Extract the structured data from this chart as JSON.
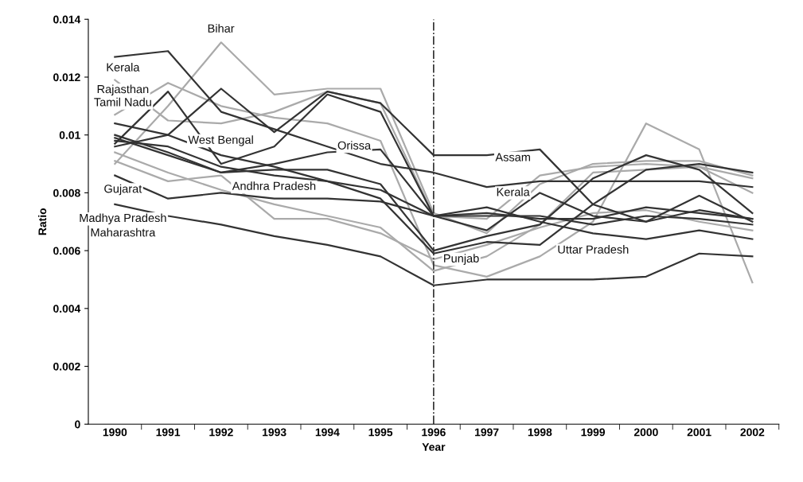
{
  "chart_data": {
    "type": "line",
    "xlabel": "Year",
    "ylabel": "Ratio",
    "categories": [
      "1990",
      "1991",
      "1992",
      "1993",
      "1994",
      "1995",
      "1996",
      "1997",
      "1998",
      "1999",
      "2000",
      "2001",
      "2002"
    ],
    "ylim": [
      0,
      0.014
    ],
    "yticks": [
      0,
      0.002,
      0.004,
      0.006,
      0.008,
      0.01,
      0.012,
      0.014
    ],
    "grid": false,
    "legend": false,
    "marker": "none",
    "line_style": "solid",
    "series": [
      {
        "color": "#aaaaaa",
        "values": [
          0.009,
          0.011,
          0.0132,
          0.0114,
          0.0116,
          0.0116,
          0.0073,
          0.0066,
          0.0083,
          0.009,
          0.0091,
          0.0091,
          0.0086
        ]
      },
      {
        "color": "#aaaaaa",
        "values": [
          0.0119,
          0.0105,
          0.0104,
          0.0108,
          0.0115,
          0.0111,
          0.0072,
          0.0071,
          0.0086,
          0.0089,
          0.009,
          0.0089,
          0.008
        ]
      },
      {
        "color": "#aaaaaa",
        "values": [
          0.0107,
          0.0118,
          0.011,
          0.0106,
          0.0104,
          0.0098,
          0.0055,
          0.0051,
          0.0058,
          0.007,
          0.0104,
          0.0095,
          0.0049
        ]
      },
      {
        "color": "#aaaaaa",
        "values": [
          0.0091,
          0.0084,
          0.0086,
          0.0071,
          0.0071,
          0.0066,
          0.0057,
          0.0062,
          0.0068,
          0.0073,
          0.0074,
          0.007,
          0.0067
        ]
      },
      {
        "color": "#aaaaaa",
        "values": [
          0.0094,
          0.0087,
          0.0081,
          0.0076,
          0.0072,
          0.0068,
          0.0053,
          0.0058,
          0.0069,
          0.0087,
          0.0088,
          0.0089,
          0.0085
        ]
      },
      {
        "color": "#333333",
        "values": [
          0.0127,
          0.0129,
          0.0108,
          0.0102,
          0.0096,
          0.009,
          0.0087,
          0.0082,
          0.0084,
          0.0084,
          0.0084,
          0.0084,
          0.0082
        ]
      },
      {
        "color": "#333333",
        "values": [
          0.0097,
          0.0115,
          0.009,
          0.0096,
          0.0114,
          0.0108,
          0.0072,
          0.0067,
          0.008,
          0.0072,
          0.007,
          0.0079,
          0.007
        ]
      },
      {
        "color": "#333333",
        "values": [
          0.0096,
          0.01,
          0.0116,
          0.0101,
          0.0115,
          0.0111,
          0.0093,
          0.0093,
          0.0095,
          0.0076,
          0.007,
          0.0074,
          0.0071
        ]
      },
      {
        "color": "#333333",
        "values": [
          0.01,
          0.0094,
          0.0087,
          0.009,
          0.0094,
          0.0095,
          0.0072,
          0.0073,
          0.0071,
          0.0071,
          0.0075,
          0.0073,
          0.0071
        ]
      },
      {
        "color": "#333333",
        "values": [
          0.0099,
          0.0093,
          0.0087,
          0.0088,
          0.0088,
          0.0083,
          0.006,
          0.0065,
          0.0069,
          0.0085,
          0.0093,
          0.0088,
          0.0073
        ]
      },
      {
        "color": "#333333",
        "values": [
          0.0104,
          0.01,
          0.0093,
          0.0089,
          0.0084,
          0.0078,
          0.0059,
          0.0063,
          0.0062,
          0.0076,
          0.0088,
          0.009,
          0.0087
        ]
      },
      {
        "color": "#333333",
        "values": [
          0.0098,
          0.0096,
          0.0089,
          0.0086,
          0.0084,
          0.0081,
          0.0072,
          0.0075,
          0.007,
          0.0066,
          0.0064,
          0.0067,
          0.0064
        ]
      },
      {
        "color": "#333333",
        "values": [
          0.0086,
          0.0078,
          0.008,
          0.0078,
          0.0078,
          0.0077,
          0.0072,
          0.0072,
          0.0072,
          0.0069,
          0.0072,
          0.0071,
          0.0069
        ]
      },
      {
        "color": "#333333",
        "values": [
          0.0076,
          0.0072,
          0.0069,
          0.0065,
          0.0062,
          0.0058,
          0.0048,
          0.005,
          0.005,
          0.005,
          0.0051,
          0.0059,
          0.0058
        ]
      }
    ],
    "ref_lines": [
      {
        "axis": "x",
        "value": "1996",
        "color": "#333333",
        "line_style": "dashdot"
      }
    ],
    "annotations": [
      "Kerala",
      "Rajasthan",
      "Bihar",
      "Tamil Nadu",
      "West Bengal",
      "Orissa",
      "Gujarat",
      "Andhra Pradesh",
      "Madhya Pradesh",
      "Maharashtra",
      "Assam",
      "Kerala",
      "Punjab",
      "Uttar Pradesh"
    ]
  }
}
